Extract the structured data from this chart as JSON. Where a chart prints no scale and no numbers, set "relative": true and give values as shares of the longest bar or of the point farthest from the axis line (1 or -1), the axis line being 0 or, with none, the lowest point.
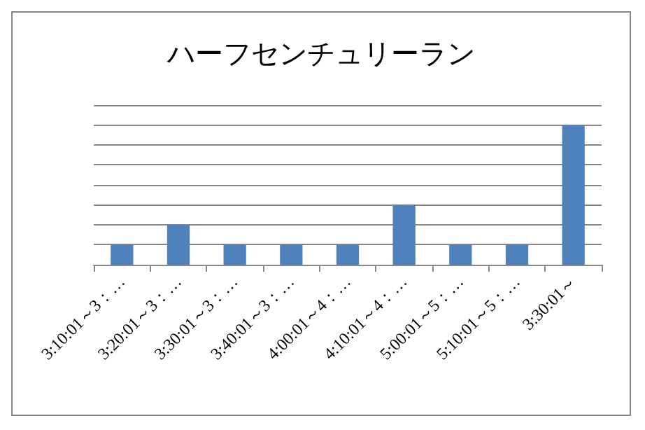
{
  "chart_data": {
    "type": "bar",
    "title": "ハーフセンチュリーラン",
    "categories": [
      "3:10:01～3：…",
      "3:20:01～3：…",
      "3:30:01～3：…",
      "3:40:01～3：…",
      "4:00:01～4：…",
      "4:10:01～4：…",
      "5:00:01～5：…",
      "5:10:01～5：…",
      "3:30:01～"
    ],
    "values": [
      0.1429,
      0.2857,
      0.1429,
      0.1429,
      0.1429,
      0.4286,
      0.1429,
      0.1429,
      1
    ],
    "color": "#4f81bd",
    "relative": true,
    "grid": "y"
  }
}
